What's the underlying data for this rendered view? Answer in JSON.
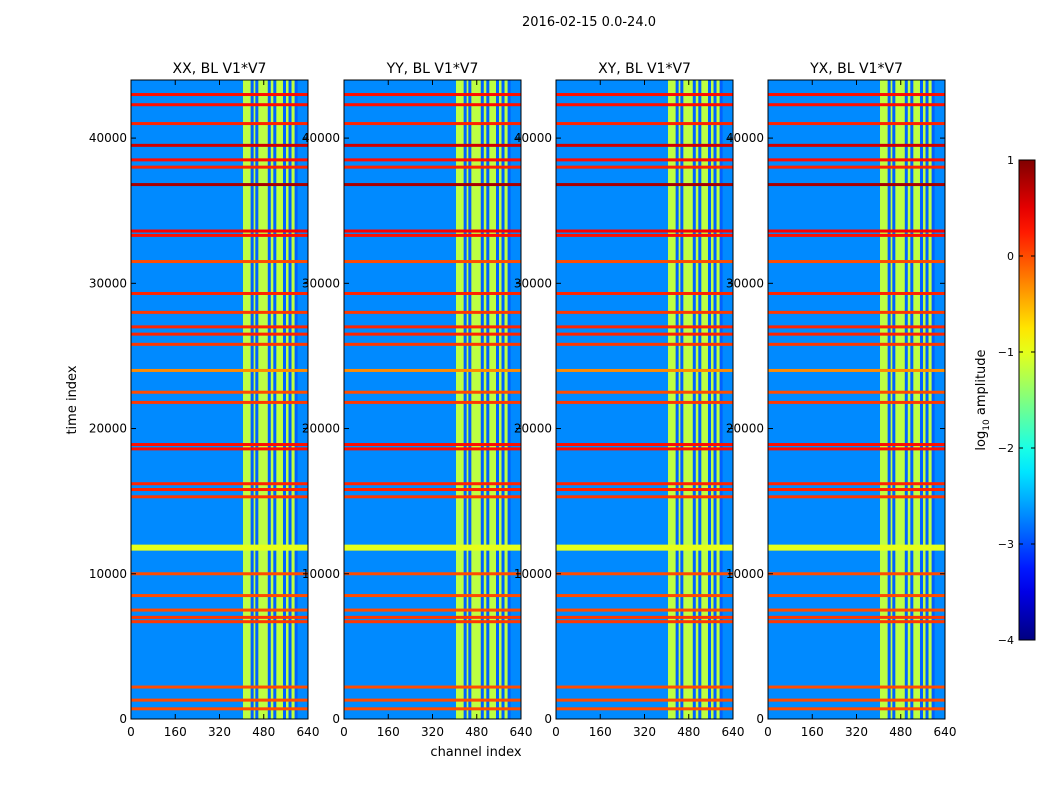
{
  "figure": {
    "suptitle": "2016-02-15 0.0-24.0"
  },
  "chart_data": {
    "type": "heatmap",
    "xlabel": "channel index",
    "ylabel": "time index",
    "xlim": [
      0,
      640
    ],
    "ylim": [
      0,
      44000
    ],
    "xticks": [
      0,
      160,
      320,
      480,
      640
    ],
    "xtick_labels": [
      "0",
      "160",
      "320",
      "480",
      "640"
    ],
    "yticks": [
      0,
      10000,
      20000,
      30000,
      40000
    ],
    "ytick_labels": [
      "0",
      "10000",
      "20000",
      "30000",
      "40000"
    ],
    "panels": [
      {
        "title": "XX, BL V1*V7",
        "pol": "XX"
      },
      {
        "title": "YY, BL V1*V7",
        "pol": "YY"
      },
      {
        "title": "XY, BL V1*V7",
        "pol": "XY"
      },
      {
        "title": "YX, BL V1*V7",
        "pol": "YX"
      }
    ],
    "background_level": -2.7,
    "high_channel_band": {
      "channel_range": [
        405,
        600
      ],
      "level": -1.2
    },
    "dark_column_channels": [
      438,
      455,
      500,
      520,
      555,
      575,
      597
    ],
    "bright_time_bands": [
      {
        "time": 43000,
        "level": 0.3
      },
      {
        "time": 42300,
        "level": 0.3
      },
      {
        "time": 41000,
        "level": 0.2
      },
      {
        "time": 39500,
        "level": 0.6
      },
      {
        "time": 38500,
        "level": 0.3
      },
      {
        "time": 38000,
        "level": 0.2
      },
      {
        "time": 36800,
        "level": 0.8
      },
      {
        "time": 33600,
        "level": 0.4
      },
      {
        "time": 33300,
        "level": 0.3
      },
      {
        "time": 31500,
        "level": 0.0
      },
      {
        "time": 29300,
        "level": 0.2
      },
      {
        "time": 28000,
        "level": 0.1
      },
      {
        "time": 27000,
        "level": 0.2
      },
      {
        "time": 26500,
        "level": 0.2
      },
      {
        "time": 25800,
        "level": 0.1
      },
      {
        "time": 24000,
        "level": -0.3
      },
      {
        "time": 22500,
        "level": 0.0
      },
      {
        "time": 21800,
        "level": 0.1
      },
      {
        "time": 18900,
        "level": 0.3
      },
      {
        "time": 18600,
        "level": 0.3
      },
      {
        "time": 16200,
        "level": 0.2
      },
      {
        "time": 15800,
        "level": 0.2
      },
      {
        "time": 15300,
        "level": 0.1
      },
      {
        "time": 11800,
        "level": -1.0
      },
      {
        "time": 10000,
        "level": 0.0
      },
      {
        "time": 8500,
        "level": 0.0
      },
      {
        "time": 7500,
        "level": 0.0
      },
      {
        "time": 7000,
        "level": 0.1
      },
      {
        "time": 6700,
        "level": 0.1
      },
      {
        "time": 2200,
        "level": 0.0
      },
      {
        "time": 1300,
        "level": 0.0
      },
      {
        "time": 700,
        "level": 0.0
      }
    ],
    "colorbar": {
      "label": "log10 amplitude",
      "label_main": "log",
      "label_sub": "10",
      "label_rest": " amplitude",
      "range": [
        -4,
        1
      ],
      "ticks": [
        1,
        0,
        -1,
        -2,
        -3,
        -4
      ],
      "tick_labels": [
        "1",
        "0",
        "−1",
        "−2",
        "−3",
        "−4"
      ],
      "colormap": "jet"
    }
  }
}
